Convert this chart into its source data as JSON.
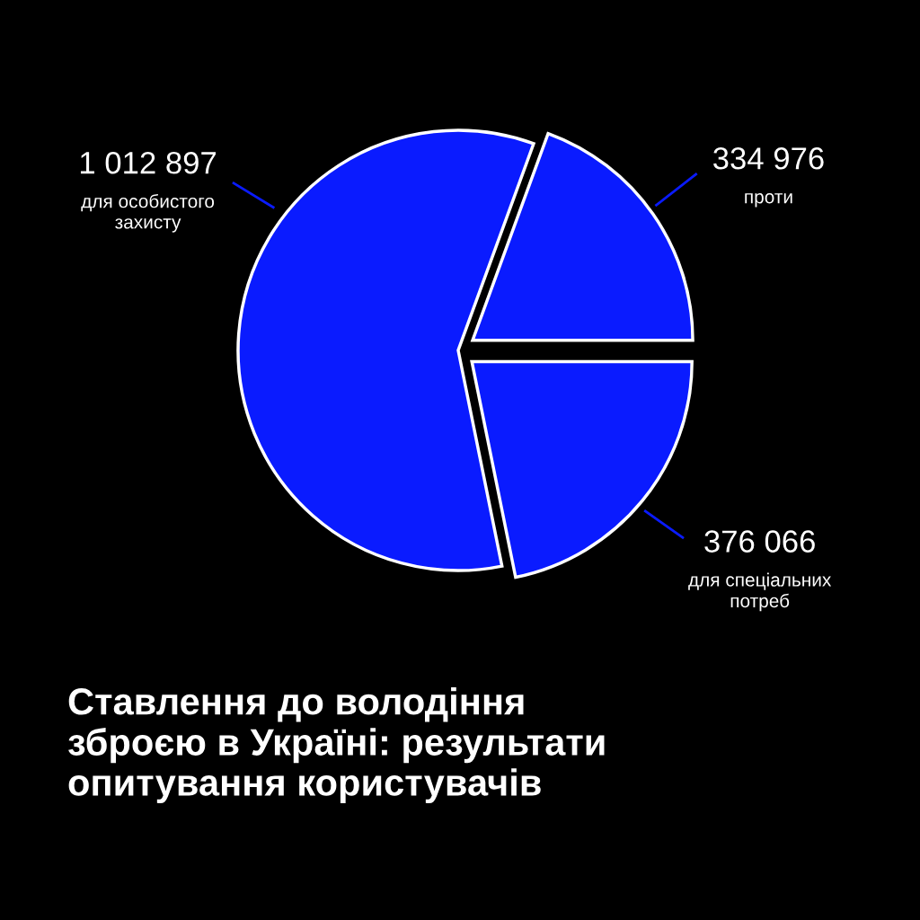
{
  "chart_data": {
    "type": "pie",
    "title": "Ставлення до володіння\nзброєю в Україні: результати\nопитування користувачів",
    "categories": [
      "проти",
      "для особистого\nзахисту",
      "для спеціальних\nпотреб"
    ],
    "values": [
      334976,
      1012897,
      376066
    ],
    "value_labels": [
      "334 976",
      "1 012 897",
      "376 066"
    ],
    "colors": [
      "#0a1bff",
      "#0a1bff",
      "#0a1bff"
    ]
  }
}
